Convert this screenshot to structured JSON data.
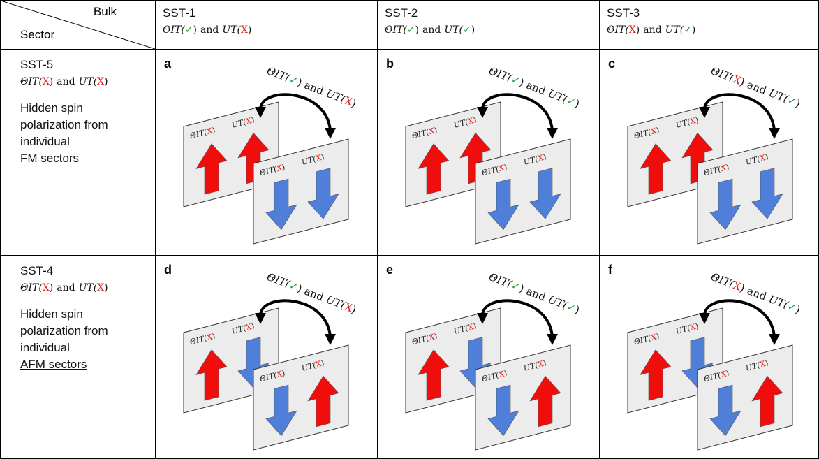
{
  "corner": {
    "top": "Bulk",
    "bottom": "Sector"
  },
  "columns": [
    {
      "title": "SST-1",
      "condition": {
        "theta": [
          "ΘIT(",
          "✓",
          ")"
        ],
        "and": "and",
        "ut": [
          "UT(",
          "X",
          ")"
        ]
      }
    },
    {
      "title": "SST-2",
      "condition": {
        "theta": [
          "ΘIT(",
          "✓",
          ")"
        ],
        "and": "and",
        "ut": [
          "UT(",
          "✓",
          ")"
        ]
      }
    },
    {
      "title": "SST-3",
      "condition": {
        "theta": [
          "ΘIT(",
          "X",
          ")"
        ],
        "and": "and",
        "ut": [
          "UT(",
          "✓",
          ")"
        ]
      }
    }
  ],
  "rows": [
    {
      "title": "SST-5",
      "condition": {
        "theta": [
          "ΘIT(",
          "X",
          ")"
        ],
        "and": "and",
        "ut": [
          "UT(",
          "X",
          ")"
        ]
      },
      "description": "Hidden spin polarization from individual",
      "description_underlined": "FM sectors",
      "panels": [
        {
          "letter": "a",
          "arc_label": {
            "theta": [
              "ΘIT(",
              "✓",
              ")"
            ],
            "and": "and",
            "ut": [
              "UT(",
              "X",
              ")"
            ]
          },
          "back_plane": [
            [
              "ΘIT(",
              "X",
              ")"
            ],
            [
              "UT(",
              "X",
              ")"
            ]
          ],
          "front_plane": [
            [
              "ΘIT(",
              "X",
              ")"
            ],
            [
              "UT(",
              "X",
              ")"
            ]
          ]
        },
        {
          "letter": "b",
          "arc_label": {
            "theta": [
              "ΘIT(",
              "✓",
              ")"
            ],
            "and": "and",
            "ut": [
              "UT(",
              "✓",
              ")"
            ]
          },
          "back_plane": [
            [
              "ΘIT(",
              "X",
              ")"
            ],
            [
              "UT(",
              "X",
              ")"
            ]
          ],
          "front_plane": [
            [
              "ΘIT(",
              "X",
              ")"
            ],
            [
              "UT(",
              "X",
              ")"
            ]
          ]
        },
        {
          "letter": "c",
          "arc_label": {
            "theta": [
              "ΘIT(",
              "X",
              ")"
            ],
            "and": "and",
            "ut": [
              "UT(",
              "✓",
              ")"
            ]
          },
          "back_plane": [
            [
              "ΘIT(",
              "X",
              ")"
            ],
            [
              "UT(",
              "X",
              ")"
            ]
          ],
          "front_plane": [
            [
              "ΘIT(",
              "X",
              ")"
            ],
            [
              "UT(",
              "X",
              ")"
            ]
          ]
        }
      ]
    },
    {
      "title": "SST-4",
      "condition": {
        "theta": [
          "ΘIT(",
          "X",
          ")"
        ],
        "and": "and",
        "ut": [
          "UT(",
          "X",
          ")"
        ]
      },
      "description": "Hidden spin polarization from individual",
      "description_underlined": "AFM sectors",
      "panels": [
        {
          "letter": "d",
          "arc_label": {
            "theta": [
              "ΘIT(",
              "✓",
              ")"
            ],
            "and": "and",
            "ut": [
              "UT(",
              "X",
              ")"
            ]
          },
          "back_plane": [
            [
              "ΘIT(",
              "X",
              ")"
            ],
            [
              "UT(",
              "X",
              ")"
            ]
          ],
          "front_plane": [
            [
              "ΘIT(",
              "X",
              ")"
            ],
            [
              "UT(",
              "X",
              ")"
            ]
          ]
        },
        {
          "letter": "e",
          "arc_label": {
            "theta": [
              "ΘIT(",
              "✓",
              ")"
            ],
            "and": "and",
            "ut": [
              "UT(",
              "✓",
              ")"
            ]
          },
          "back_plane": [
            [
              "ΘIT(",
              "X",
              ")"
            ],
            [
              "UT(",
              "X",
              ")"
            ]
          ],
          "front_plane": [
            [
              "ΘIT(",
              "X",
              ")"
            ],
            [
              "UT(",
              "X",
              ")"
            ]
          ]
        },
        {
          "letter": "f",
          "arc_label": {
            "theta": [
              "ΘIT(",
              "X",
              ")"
            ],
            "and": "and",
            "ut": [
              "UT(",
              "✓",
              ")"
            ]
          },
          "back_plane": [
            [
              "ΘIT(",
              "X",
              ")"
            ],
            [
              "UT(",
              "X",
              ")"
            ]
          ],
          "front_plane": [
            [
              "ΘIT(",
              "X",
              ")"
            ],
            [
              "UT(",
              "X",
              ")"
            ]
          ]
        }
      ]
    }
  ]
}
